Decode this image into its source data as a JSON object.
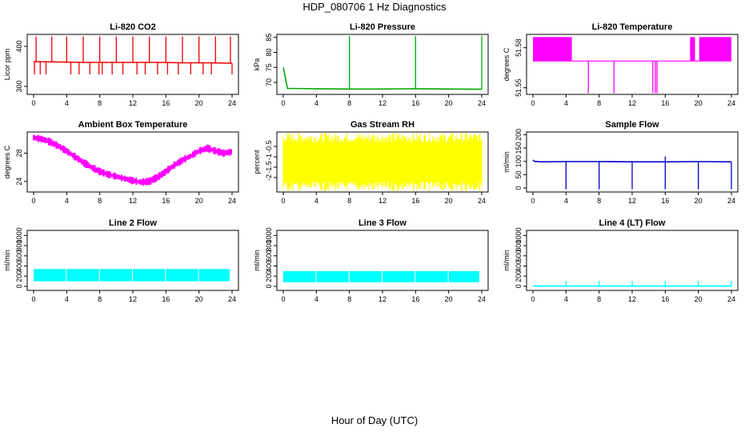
{
  "figure": {
    "title": "HDP_080706  1 Hz Diagnostics",
    "x_caption": "Hour of Day (UTC)"
  },
  "chart_data": [
    {
      "type": "line",
      "title": "Li-820 CO2",
      "ylabel": "Licor ppm",
      "color": "#ee0000",
      "xlim": [
        0,
        24
      ],
      "ylim": [
        280,
        430
      ],
      "x_ticks": [
        0,
        4,
        8,
        12,
        16,
        20,
        24
      ],
      "y_ticks": [
        300,
        400
      ],
      "series": [
        {
          "x": [
            0,
            3,
            6,
            9,
            12,
            15,
            18,
            21,
            24
          ],
          "y": [
            362,
            361,
            360,
            360,
            360,
            360,
            359,
            359,
            358
          ]
        }
      ],
      "spikes_up_x": [
        0.3,
        2.2,
        4.0,
        6.0,
        8.0,
        10.0,
        12.0,
        14.0,
        16.0,
        18.0,
        20.0,
        22.0,
        23.8
      ],
      "spikes_up_to": 425,
      "spikes_down_x": [
        0.1,
        0.8,
        1.5,
        4.5,
        5.5,
        6.8,
        7.9,
        8.3,
        9.5,
        10.8,
        12.5,
        13.5,
        15.0,
        16.2,
        17.5,
        19.0,
        20.5,
        21.5,
        24.0
      ],
      "spikes_down_to": 330
    },
    {
      "type": "line",
      "title": "Li-820 Pressure",
      "ylabel": "kPa",
      "color": "#00aa00",
      "xlim": [
        0,
        24
      ],
      "ylim": [
        66,
        86
      ],
      "x_ticks": [
        0,
        4,
        8,
        12,
        16,
        20,
        24
      ],
      "y_ticks": [
        70,
        75,
        80,
        85
      ],
      "series": [
        {
          "x": [
            0,
            0.5,
            4,
            8,
            12,
            16,
            20,
            24
          ],
          "y": [
            75,
            68.0,
            67.9,
            67.8,
            67.8,
            67.9,
            67.8,
            67.7
          ]
        }
      ],
      "spikes_up_x": [
        8.0,
        16.0,
        24.0
      ],
      "spikes_up_to": 85.5
    },
    {
      "type": "line",
      "title": "Li-820 Temperature",
      "ylabel": "degrees C",
      "color": "#ff00ff",
      "xlim": [
        0,
        24
      ],
      "ylim": [
        51.545,
        51.59
      ],
      "x_ticks": [
        0,
        4,
        8,
        12,
        16,
        20,
        24
      ],
      "y_ticks": [
        51.55,
        51.58
      ],
      "baseline": 51.57,
      "upper": 51.588,
      "filled_ranges": [
        [
          0,
          4.7
        ],
        [
          19.0,
          19.6
        ],
        [
          20.1,
          24.0
        ]
      ],
      "spikes_down_x": [
        6.7,
        9.8,
        14.5,
        14.8,
        15.0
      ],
      "spikes_down_to": 51.546
    },
    {
      "type": "line",
      "title": "Ambient Box Temperature",
      "ylabel": "degrees C",
      "color": "#ff00ff",
      "xlim": [
        0,
        24
      ],
      "ylim": [
        22.5,
        31
      ],
      "x_ticks": [
        0,
        4,
        8,
        12,
        16,
        20,
        24
      ],
      "y_ticks": [
        24,
        28
      ],
      "series": [
        {
          "x": [
            0,
            1,
            2,
            3,
            4,
            5,
            6,
            7,
            8,
            9,
            10,
            11,
            12,
            13,
            14,
            15,
            16,
            17,
            18,
            19,
            20,
            21,
            22,
            23,
            24
          ],
          "y": [
            30.2,
            30.0,
            29.6,
            29.0,
            28.3,
            27.5,
            26.7,
            26.0,
            25.4,
            25.0,
            24.7,
            24.4,
            24.1,
            23.9,
            24.0,
            24.6,
            25.4,
            26.3,
            27.0,
            27.6,
            28.3,
            28.7,
            28.3,
            28.0,
            28.2
          ]
        }
      ],
      "noise": 0.4
    },
    {
      "type": "area",
      "title": "Gas Stream RH",
      "ylabel": "percent",
      "color": "#ffff00",
      "xlim": [
        0,
        24
      ],
      "ylim": [
        -2.7,
        0.2
      ],
      "x_ticks": [
        0,
        4,
        8,
        12,
        16,
        20,
        24
      ],
      "y_ticks": [
        -2.0,
        -1.5,
        -1.0,
        -0.5
      ],
      "band": [
        -2.2,
        -0.3
      ]
    },
    {
      "type": "line",
      "title": "Sample Flow",
      "ylabel": "ml/min",
      "color": "#0000cc",
      "xlim": [
        0,
        24
      ],
      "ylim": [
        -15,
        210
      ],
      "x_ticks": [
        0,
        4,
        8,
        12,
        16,
        20,
        24
      ],
      "y_ticks": [
        0,
        50,
        100,
        150,
        200
      ],
      "series": [
        {
          "x": [
            0,
            0.2,
            1,
            4,
            8,
            12,
            16,
            20,
            24
          ],
          "y": [
            105,
            100,
            98,
            99,
            99,
            98,
            98,
            99,
            98
          ]
        }
      ],
      "spikes_down_x": [
        4.0,
        8.0,
        12.0,
        16.0,
        20.0,
        24.0
      ],
      "spikes_down_to": -5,
      "spikes_up_x": [
        16.0
      ],
      "spikes_up_to": 118
    },
    {
      "type": "area",
      "title": "Line 2 Flow",
      "ylabel": "ml/min",
      "color": "#00ffff",
      "xlim": [
        0,
        24
      ],
      "ylim": [
        -80,
        1100
      ],
      "x_ticks": [
        0,
        4,
        8,
        12,
        16,
        20,
        24
      ],
      "y_ticks": [
        0,
        200,
        400,
        600,
        800,
        1000
      ],
      "band": [
        100,
        340
      ],
      "gaps_x": [
        4.0,
        8.0,
        12.0,
        16.0,
        20.0,
        23.8
      ]
    },
    {
      "type": "area",
      "title": "Line 3 Flow",
      "ylabel": "ml/min",
      "color": "#00ffff",
      "xlim": [
        0,
        24
      ],
      "ylim": [
        -80,
        1100
      ],
      "x_ticks": [
        0,
        4,
        8,
        12,
        16,
        20,
        24
      ],
      "y_ticks": [
        0,
        200,
        400,
        600,
        800,
        1000
      ],
      "band": [
        80,
        300
      ],
      "gaps_x": [
        4.0,
        8.0,
        12.0,
        16.0,
        20.0,
        23.8
      ]
    },
    {
      "type": "line",
      "title": "Line 4 (LT) Flow",
      "ylabel": "ml/min",
      "color": "#00ffff",
      "xlim": [
        0,
        24
      ],
      "ylim": [
        -80,
        1100
      ],
      "x_ticks": [
        0,
        4,
        8,
        12,
        16,
        20,
        24
      ],
      "y_ticks": [
        0,
        200,
        400,
        600,
        800,
        1000
      ],
      "series": [
        {
          "x": [
            0,
            24
          ],
          "y": [
            5,
            5
          ]
        }
      ],
      "spikes_up_x": [
        4.0,
        8.0,
        12.0,
        16.0,
        20.0,
        24.0
      ],
      "spikes_up_to": 110
    }
  ]
}
